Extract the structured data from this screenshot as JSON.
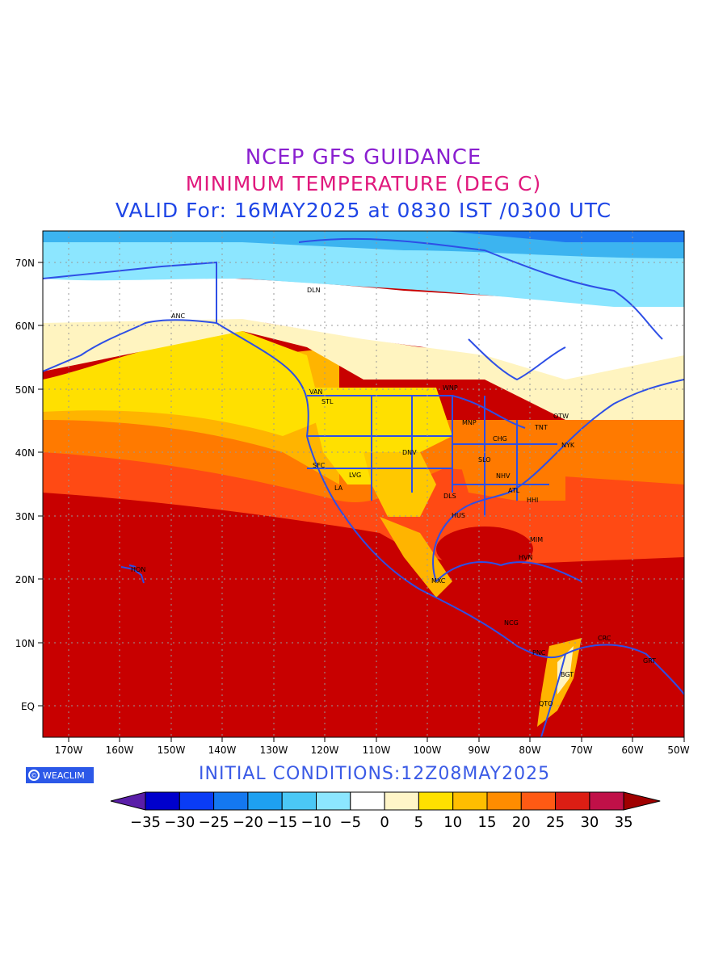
{
  "titles": {
    "line1": "NCEP GFS GUIDANCE",
    "line2": "MINIMUM TEMPERATURE (DEG C)",
    "line3": "VALID For: 16MAY2025 at 0830 IST /0300 UTC"
  },
  "map": {
    "lat_labels": [
      "70N",
      "60N",
      "50N",
      "40N",
      "30N",
      "20N",
      "10N",
      "EQ"
    ],
    "lon_labels": [
      "170W",
      "160W",
      "150W",
      "140W",
      "130W",
      "120W",
      "110W",
      "100W",
      "90W",
      "80W",
      "70W",
      "60W",
      "50W"
    ],
    "cities": [
      "DLN",
      "ANC",
      "VAN",
      "STL",
      "WNP",
      "MNP",
      "TNT",
      "OTW",
      "CHG",
      "NYK",
      "DNV",
      "SFC",
      "LVG",
      "LA",
      "SLO",
      "NHV",
      "ATL",
      "DLS",
      "HHI",
      "HUS",
      "MIM",
      "HVN",
      "HON",
      "MXC",
      "NCG",
      "CRC",
      "PNC",
      "GRT",
      "BGT",
      "QTO"
    ]
  },
  "footer": {
    "logo_text": "WEACLIM",
    "initial_conditions": "INITIAL CONDITIONS:12Z08MAY2025"
  },
  "colorbar": {
    "labels": [
      "-35",
      "-30",
      "-25",
      "-20",
      "-15",
      "-10",
      "-5",
      "0",
      "5",
      "10",
      "15",
      "20",
      "25",
      "30",
      "35"
    ],
    "colors": [
      "#5a1ea8",
      "#0000cc",
      "#0a3cf5",
      "#1478f0",
      "#1ea0f0",
      "#4bc8f5",
      "#8ce6ff",
      "#ffffff",
      "#fff5c8",
      "#ffe100",
      "#ffbe00",
      "#ff8c00",
      "#ff5a14",
      "#dc1e14",
      "#c01048",
      "#a00000"
    ]
  }
}
